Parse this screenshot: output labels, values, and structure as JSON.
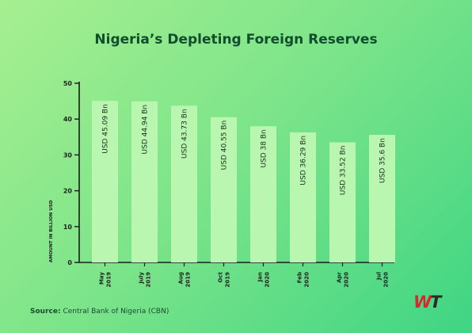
{
  "brand": {
    "logo_text_w": "W",
    "logo_text_t": "T",
    "logo_red": "#d8272f",
    "logo_dark": "#2b2b2b"
  },
  "colors": {
    "bar": "#b9f6b0",
    "axis": "#1a1a1a",
    "title": "#114d2f",
    "text": "#1d4a30"
  },
  "source": {
    "label": "Source:",
    "text": "Central Bank of Nigeria (CBN)"
  },
  "chart_data": {
    "type": "bar",
    "title": "Nigeria’s Depleting Foreign Reserves",
    "ylabel": "AMOUNT IN BILLION USD",
    "xlabel": "",
    "ylim": [
      0,
      50
    ],
    "yticks": [
      0,
      10,
      20,
      30,
      40,
      50
    ],
    "grid": false,
    "categories": [
      [
        "May",
        "2019"
      ],
      [
        "July",
        "2019"
      ],
      [
        "Aug",
        "2019"
      ],
      [
        "Oct",
        "2019"
      ],
      [
        "Jan",
        "2020"
      ],
      [
        "Feb",
        "2020"
      ],
      [
        "Apr",
        "2020"
      ],
      [
        "Jul",
        "2020"
      ]
    ],
    "values": [
      45.09,
      44.94,
      43.73,
      40.55,
      38,
      36.29,
      33.52,
      35.6
    ],
    "data_labels": [
      "USD 45.09 Bn",
      "USD 44.94 Bn",
      "USD 43.73 Bn",
      "USD 40.55 Bn",
      "USD 38 Bn",
      "USD 36.29 Bn",
      "USD 33.52 Bn",
      "USD 35.6 Bn"
    ]
  }
}
